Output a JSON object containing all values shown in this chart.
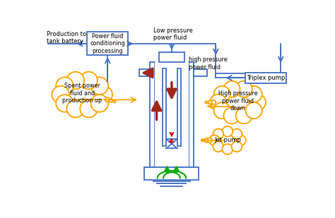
{
  "fig_width": 4.74,
  "fig_height": 3.09,
  "dpi": 100,
  "bg_color": "#ffffff",
  "blue": "#4472C4",
  "dark_red": "#A0281A",
  "orange": "#FFA500",
  "green": "#00AA00",
  "red": "#CC0000",
  "labels": {
    "production_to_tank": "Production to\ntank battery",
    "power_fluid_box": "Power fluid\nconditioning\nprocessing",
    "low_pressure": "Low pressure\npower fluid",
    "high_pressure_label": "high pressure\npower fluid",
    "triplex_pump": "Triplex pump",
    "spent_power": "Spent power\nfluid and\nproduction up",
    "high_pressure_down": "High pressure\npower fluid\ndown",
    "jet_pump": "Jet pump"
  }
}
